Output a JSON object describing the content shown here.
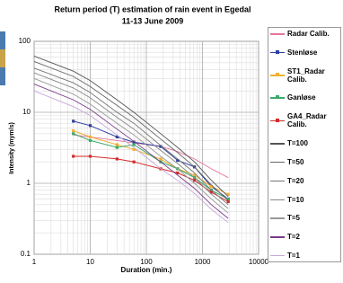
{
  "chart_data": {
    "type": "line",
    "title": "Return period (T) estimation of rain event in Egedal",
    "subtitle": "11-13 June 2009",
    "x_label": "Duration (min.)",
    "y_label": "Intensity (mym/s)",
    "xlog": true,
    "ylog": true,
    "grid": true,
    "minor_grid": true,
    "xlim": [
      1,
      10000
    ],
    "xticks": [
      1,
      10,
      100,
      1000,
      10000
    ],
    "ylim": [
      0.1,
      100
    ],
    "yticks": [
      0.1,
      1,
      10,
      100
    ],
    "legend": "right",
    "series": [
      {
        "name": "Radar Calib.",
        "color": "#e8739a",
        "markers": false,
        "x": [
          5,
          10,
          30,
          60,
          180,
          360,
          720,
          1440,
          2880
        ],
        "values": [
          4.8,
          4.5,
          4,
          3.7,
          3.3,
          2.8,
          2.2,
          1.6,
          1.2
        ]
      },
      {
        "name": "Stenløse",
        "color": "#2e3f9e",
        "markers": true,
        "x": [
          5,
          10,
          30,
          60,
          180,
          360,
          720,
          1440,
          2880
        ],
        "values": [
          7.5,
          6.5,
          4.5,
          3.8,
          3.3,
          2.1,
          1.7,
          0.9,
          0.6
        ]
      },
      {
        "name": "ST1_Radar Calib.",
        "color": "#f0b030",
        "markers": true,
        "x": [
          5,
          10,
          30,
          60,
          180,
          360,
          720,
          1440,
          2880
        ],
        "values": [
          5.5,
          4.5,
          3.5,
          3,
          2.2,
          1.6,
          1.3,
          0.9,
          0.7
        ]
      },
      {
        "name": "Ganløse",
        "color": "#3aaa6a",
        "markers": true,
        "x": [
          5,
          10,
          30,
          60,
          180,
          360,
          720,
          1440,
          2880
        ],
        "values": [
          5,
          4,
          3.2,
          3.5,
          2,
          1.6,
          1.2,
          0.8,
          0.6
        ]
      },
      {
        "name": "GA4_Radar Calib.",
        "color": "#d42a2a",
        "markers": true,
        "x": [
          5,
          10,
          30,
          60,
          180,
          360,
          720,
          1440,
          2880
        ],
        "values": [
          2.4,
          2.4,
          2.2,
          2,
          1.6,
          1.4,
          1.1,
          0.75,
          0.55
        ]
      },
      {
        "name": "T=100",
        "color": "#555555",
        "markers": false,
        "x": [
          1,
          5,
          10,
          30,
          60,
          180,
          360,
          720,
          1440,
          2880
        ],
        "values": [
          62,
          38,
          28,
          15,
          10,
          5,
          3.2,
          2,
          1.1,
          0.65
        ]
      },
      {
        "name": "T=50",
        "color": "#666666",
        "markers": false,
        "x": [
          1,
          5,
          10,
          30,
          60,
          180,
          360,
          720,
          1440,
          2880
        ],
        "values": [
          52,
          32,
          23,
          12.5,
          8.5,
          4.2,
          2.7,
          1.7,
          0.95,
          0.57
        ]
      },
      {
        "name": "T=20",
        "color": "#777777",
        "markers": false,
        "x": [
          1,
          5,
          10,
          30,
          60,
          180,
          360,
          720,
          1440,
          2880
        ],
        "values": [
          42,
          26,
          19,
          10,
          7,
          3.4,
          2.2,
          1.4,
          0.8,
          0.5
        ]
      },
      {
        "name": "T=10",
        "color": "#888888",
        "markers": false,
        "x": [
          1,
          5,
          10,
          30,
          60,
          180,
          360,
          720,
          1440,
          2880
        ],
        "values": [
          36,
          22,
          16,
          8.5,
          5.8,
          2.9,
          1.9,
          1.2,
          0.7,
          0.44
        ]
      },
      {
        "name": "T=5",
        "color": "#999999",
        "markers": false,
        "x": [
          1,
          5,
          10,
          30,
          60,
          180,
          360,
          720,
          1440,
          2880
        ],
        "values": [
          30,
          18,
          13,
          7,
          4.8,
          2.4,
          1.6,
          1.0,
          0.6,
          0.38
        ]
      },
      {
        "name": "T=2",
        "color": "#7a3a8a",
        "markers": false,
        "x": [
          1,
          5,
          10,
          30,
          60,
          180,
          360,
          720,
          1440,
          2880
        ],
        "values": [
          25,
          15,
          11,
          5.8,
          3.9,
          2,
          1.3,
          0.85,
          0.5,
          0.32
        ]
      },
      {
        "name": "T=1",
        "color": "#c8a8d8",
        "markers": false,
        "x": [
          1,
          5,
          10,
          30,
          60,
          180,
          360,
          720,
          1440,
          2880
        ],
        "values": [
          20,
          12,
          9,
          4.8,
          3.2,
          1.6,
          1.1,
          0.72,
          0.43,
          0.28
        ]
      }
    ]
  }
}
